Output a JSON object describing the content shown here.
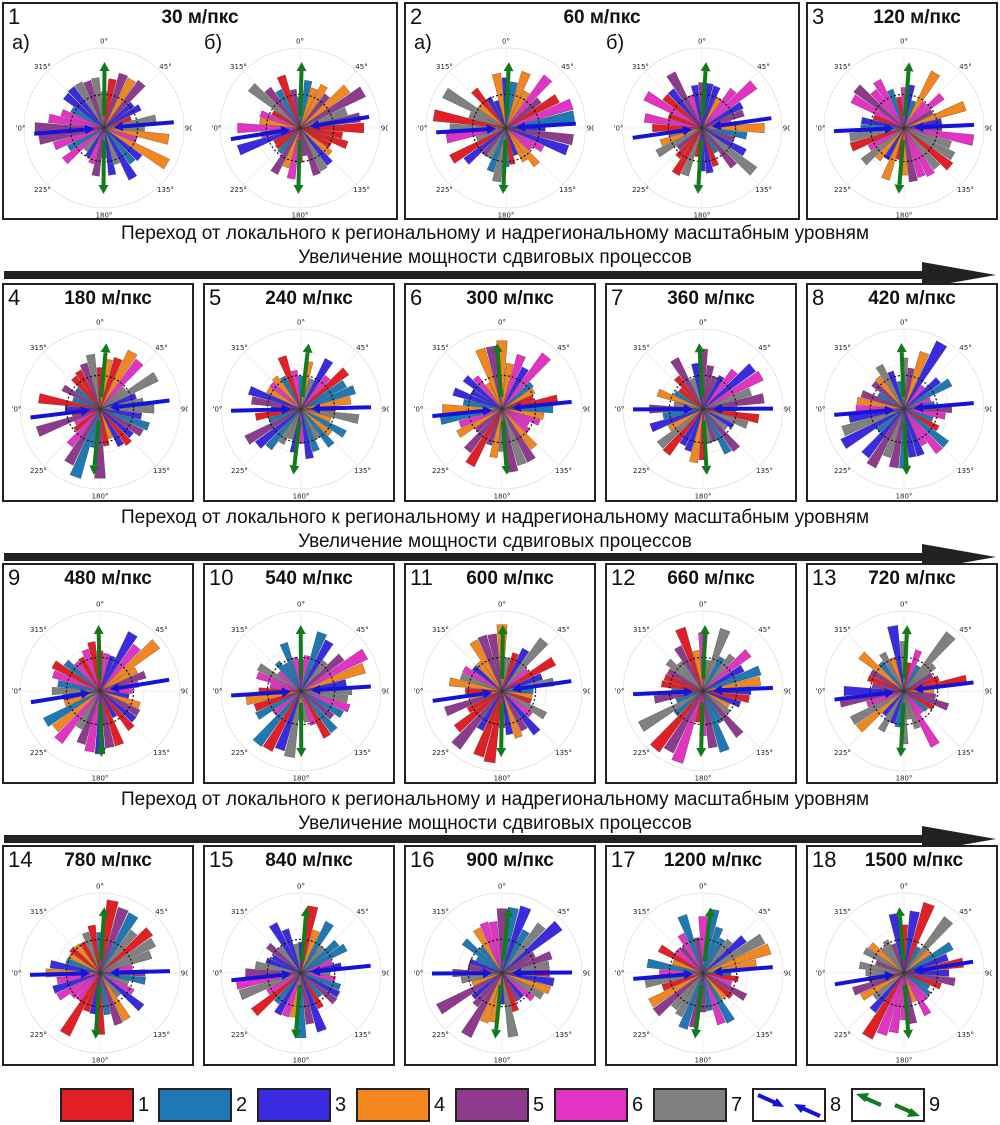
{
  "rows": [
    {
      "panels": [
        {
          "num": "1",
          "title": "30 м/пкс",
          "subs": [
            "а)",
            "б)"
          ]
        },
        {
          "num": "2",
          "title": "60 м/пкс",
          "subs": [
            "а)",
            "б)"
          ]
        },
        {
          "num": "3",
          "title": "120 м/пкс"
        }
      ]
    },
    {
      "panels": [
        {
          "num": "4",
          "title": "180 м/пкс"
        },
        {
          "num": "5",
          "title": "240 м/пкс"
        },
        {
          "num": "6",
          "title": "300 м/пкс"
        },
        {
          "num": "7",
          "title": "360 м/пкс"
        },
        {
          "num": "8",
          "title": "420 м/пкс"
        }
      ]
    },
    {
      "panels": [
        {
          "num": "9",
          "title": "480 м/пкс"
        },
        {
          "num": "10",
          "title": "540 м/пкс"
        },
        {
          "num": "11",
          "title": "600 м/пкс"
        },
        {
          "num": "12",
          "title": "660 м/пкс"
        },
        {
          "num": "13",
          "title": "720 м/пкс"
        }
      ]
    },
    {
      "panels": [
        {
          "num": "14",
          "title": "780 м/пкс"
        },
        {
          "num": "15",
          "title": "840 м/пкс"
        },
        {
          "num": "16",
          "title": "900 м/пкс"
        },
        {
          "num": "17",
          "title": "1200 м/пкс"
        },
        {
          "num": "18",
          "title": "1500 м/пкс"
        }
      ]
    }
  ],
  "angle_labels": [
    "0°",
    "45°",
    "90°",
    "135°",
    "180°",
    "225°",
    "270°",
    "315°"
  ],
  "transition_caption": "Переход от локального к региональному и надрегиональному масштабным уровням",
  "shear_caption": "Увеличение мощности сдвиговых процессов",
  "legend": [
    {
      "num": "1",
      "color": "#e11f26"
    },
    {
      "num": "2",
      "color": "#1f78b4"
    },
    {
      "num": "3",
      "color": "#3a2be0"
    },
    {
      "num": "4",
      "color": "#f2861f"
    },
    {
      "num": "5",
      "color": "#8e3b8e"
    },
    {
      "num": "6",
      "color": "#e233c4"
    },
    {
      "num": "7",
      "color": "#808080"
    },
    {
      "num": "8",
      "icon": "blue-compression-arrows-icon",
      "color": "#1414d8"
    },
    {
      "num": "9",
      "icon": "green-extension-arrows-icon",
      "color": "#117a1c"
    }
  ]
}
